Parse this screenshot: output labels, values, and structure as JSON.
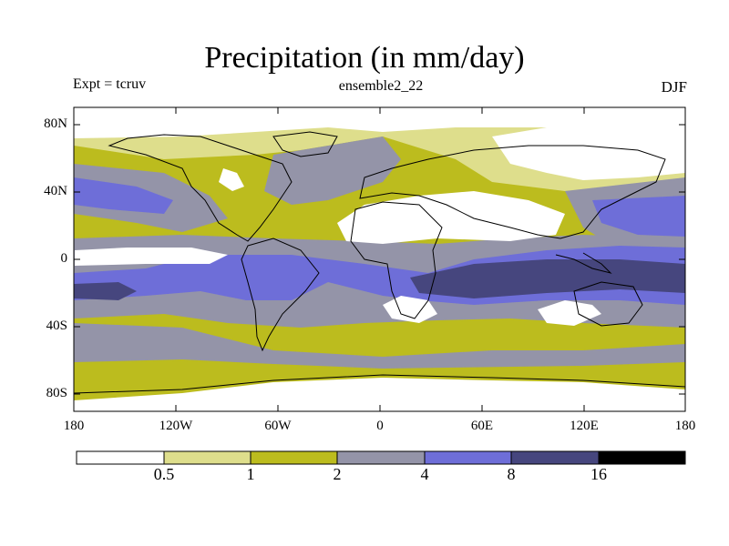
{
  "title": "Precipitation (in mm/day)",
  "experiment": "Expt = tcruv",
  "run": "ensemble2_22",
  "season": "DJF",
  "map": {
    "projection": "cylindrical equidistant",
    "lat_ticks": [
      "80N",
      "40N",
      "0",
      "40S",
      "80S"
    ],
    "lon_ticks": [
      "180",
      "120W",
      "60W",
      "0",
      "60E",
      "120E",
      "180"
    ]
  },
  "colorbar": {
    "labels": [
      "0.5",
      "1",
      "2",
      "4",
      "8",
      "16"
    ],
    "colors": [
      "#ffffff",
      "#dede8c",
      "#bcbc1e",
      "#9494a8",
      "#6e6ed8",
      "#46467e",
      "#000000"
    ]
  }
}
